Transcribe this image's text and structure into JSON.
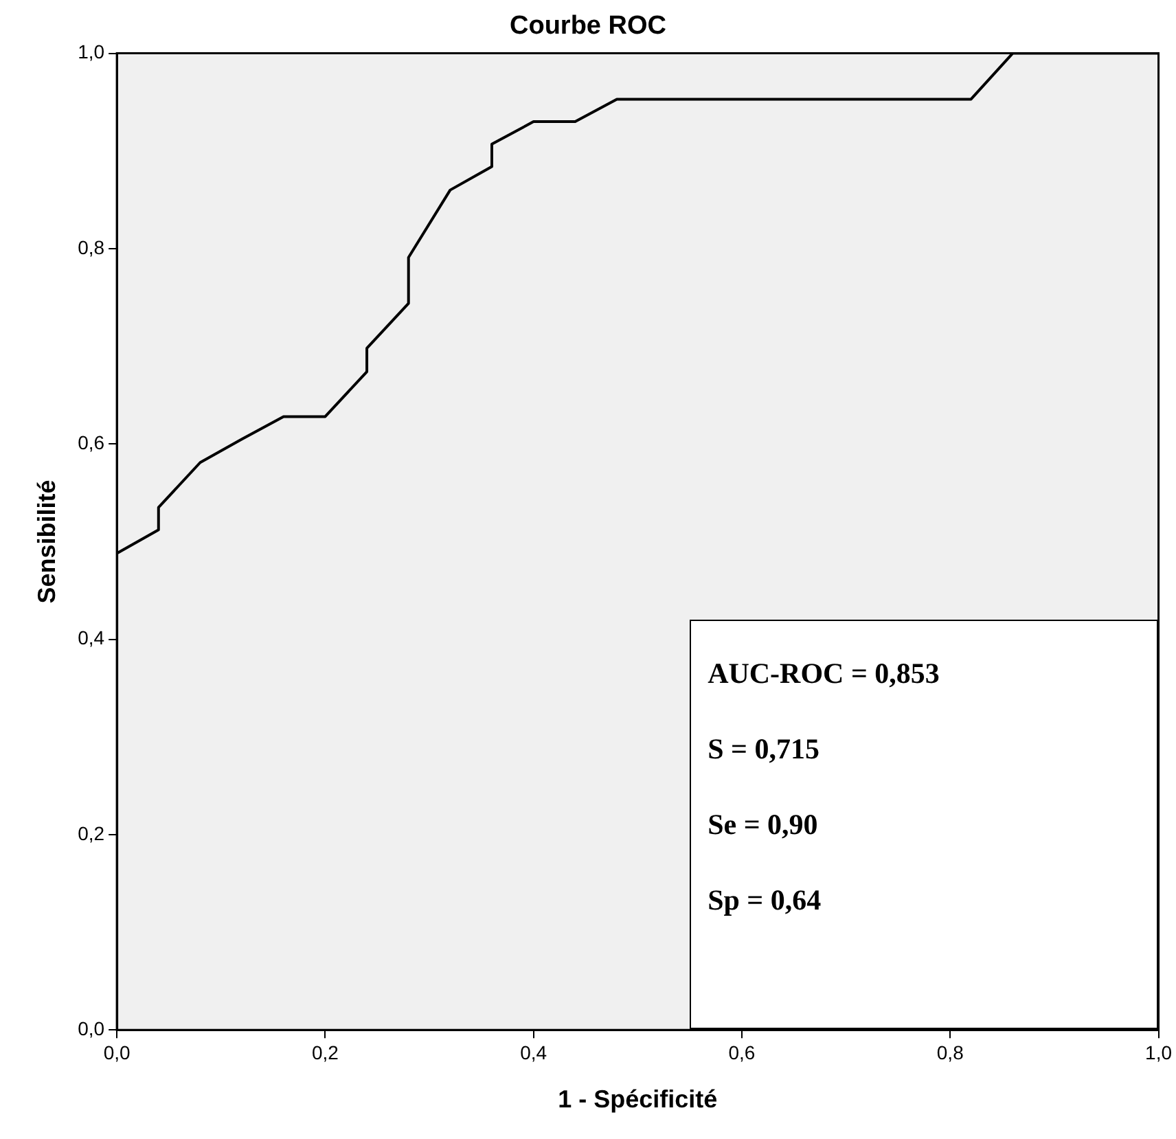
{
  "chart_data": {
    "type": "line",
    "title": "Courbe ROC",
    "xlabel": "1 - Spécificité",
    "ylabel": "Sensibilité",
    "x": [
      0,
      0,
      0.04,
      0.04,
      0.08,
      0.12,
      0.16,
      0.2,
      0.24,
      0.24,
      0.28,
      0.28,
      0.32,
      0.36,
      0.36,
      0.4,
      0.44,
      0.48,
      0.82,
      0.86,
      1
    ],
    "series": [
      {
        "color": "#000000",
        "values": [
          0,
          0.488,
          0.512,
          0.535,
          0.581,
          0.605,
          0.628,
          0.628,
          0.674,
          0.698,
          0.744,
          0.791,
          0.86,
          0.884,
          0.907,
          0.93,
          0.93,
          0.953,
          0.953,
          1,
          1
        ]
      }
    ],
    "xlim": [
      0,
      1
    ],
    "ylim": [
      0,
      1
    ],
    "xticks": [
      {
        "value": 0,
        "label": "0,0"
      },
      {
        "value": 0.2,
        "label": "0,2"
      },
      {
        "value": 0.4,
        "label": "0,4"
      },
      {
        "value": 0.6,
        "label": "0,6"
      },
      {
        "value": 0.8,
        "label": "0,8"
      },
      {
        "value": 1,
        "label": "1,0"
      }
    ],
    "yticks": [
      {
        "value": 0,
        "label": "0,0"
      },
      {
        "value": 0.2,
        "label": "0,2"
      },
      {
        "value": 0.4,
        "label": "0,4"
      },
      {
        "value": 0.6,
        "label": "0,6"
      },
      {
        "value": 0.8,
        "label": "0,8"
      },
      {
        "value": 1,
        "label": "1,0"
      }
    ],
    "annotations": [
      "AUC-ROC = 0,853",
      "S = 0,715",
      "Se = 0,90",
      "Sp = 0,64"
    ],
    "grid": false,
    "legend": false,
    "marker": "none",
    "line_style": "solid"
  }
}
